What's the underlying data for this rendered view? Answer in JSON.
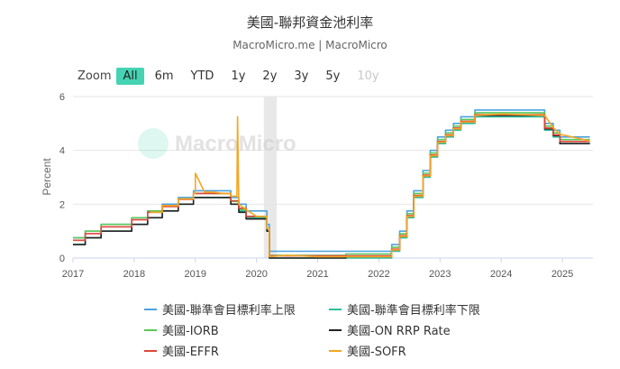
{
  "title": "美國-聯邦資金池利率",
  "subtitle": "MacroMicro.me | MacroMicro",
  "watermark": "MacroMicro",
  "zoom": {
    "label": "Zoom",
    "buttons": [
      {
        "label": "All",
        "state": "active"
      },
      {
        "label": "6m",
        "state": "normal"
      },
      {
        "label": "YTD",
        "state": "normal"
      },
      {
        "label": "1y",
        "state": "normal"
      },
      {
        "label": "2y",
        "state": "normal"
      },
      {
        "label": "3y",
        "state": "normal"
      },
      {
        "label": "5y",
        "state": "normal"
      },
      {
        "label": "10y",
        "state": "disabled"
      }
    ]
  },
  "chart_data": {
    "type": "line",
    "ylabel": "Percent",
    "xlabel": "",
    "xlim": [
      2017,
      2025.5
    ],
    "ylim": [
      0,
      6
    ],
    "yticks": [
      "0",
      "2",
      "4",
      "6"
    ],
    "xticks": [
      "2017",
      "2018",
      "2019",
      "2020",
      "2021",
      "2022",
      "2023",
      "2024",
      "2025"
    ],
    "grid": true,
    "shaded_band": [
      2020.12,
      2020.33
    ],
    "legend_position": "bottom",
    "series": [
      {
        "name": "美國-聯準會目標利率上限",
        "color": "#4aa3df",
        "x": [
          2017.0,
          2017.2,
          2017.2,
          2017.46,
          2017.46,
          2017.96,
          2017.96,
          2018.22,
          2018.22,
          2018.46,
          2018.46,
          2018.72,
          2018.72,
          2018.97,
          2018.97,
          2019.58,
          2019.58,
          2019.71,
          2019.71,
          2019.83,
          2019.83,
          2020.17,
          2020.17,
          2020.21,
          2020.21,
          2022.21,
          2022.21,
          2022.34,
          2022.34,
          2022.46,
          2022.46,
          2022.57,
          2022.57,
          2022.72,
          2022.72,
          2022.84,
          2022.84,
          2022.96,
          2022.96,
          2023.09,
          2023.09,
          2023.22,
          2023.22,
          2023.34,
          2023.34,
          2023.57,
          2023.57,
          2024.71,
          2024.71,
          2024.85,
          2024.85,
          2024.96,
          2024.96,
          2025.45
        ],
        "y": [
          0.75,
          0.75,
          1.0,
          1.0,
          1.25,
          1.25,
          1.5,
          1.5,
          1.75,
          1.75,
          2.0,
          2.0,
          2.25,
          2.25,
          2.5,
          2.5,
          2.25,
          2.25,
          2.0,
          2.0,
          1.75,
          1.75,
          1.25,
          1.25,
          0.25,
          0.25,
          0.5,
          0.5,
          1.0,
          1.0,
          1.75,
          1.75,
          2.5,
          2.5,
          3.25,
          3.25,
          4.0,
          4.0,
          4.5,
          4.5,
          4.75,
          4.75,
          5.0,
          5.0,
          5.25,
          5.25,
          5.5,
          5.5,
          5.0,
          5.0,
          4.75,
          4.75,
          4.5,
          4.5
        ]
      },
      {
        "name": "美國-聯準會目標利率下限",
        "color": "#2bbfa0",
        "x": [
          2017.0,
          2017.2,
          2017.2,
          2017.46,
          2017.46,
          2017.96,
          2017.96,
          2018.22,
          2018.22,
          2018.46,
          2018.46,
          2018.72,
          2018.72,
          2018.97,
          2018.97,
          2019.58,
          2019.58,
          2019.71,
          2019.71,
          2019.83,
          2019.83,
          2020.17,
          2020.17,
          2020.21,
          2020.21,
          2022.21,
          2022.21,
          2022.34,
          2022.34,
          2022.46,
          2022.46,
          2022.57,
          2022.57,
          2022.72,
          2022.72,
          2022.84,
          2022.84,
          2022.96,
          2022.96,
          2023.09,
          2023.09,
          2023.22,
          2023.22,
          2023.34,
          2023.34,
          2023.57,
          2023.57,
          2024.71,
          2024.71,
          2024.85,
          2024.85,
          2024.96,
          2024.96,
          2025.45
        ],
        "y": [
          0.5,
          0.5,
          0.75,
          0.75,
          1.0,
          1.0,
          1.25,
          1.25,
          1.5,
          1.5,
          1.75,
          1.75,
          2.0,
          2.0,
          2.25,
          2.25,
          2.0,
          2.0,
          1.75,
          1.75,
          1.5,
          1.5,
          1.0,
          1.0,
          0.0,
          0.0,
          0.25,
          0.25,
          0.75,
          0.75,
          1.5,
          1.5,
          2.25,
          2.25,
          3.0,
          3.0,
          3.75,
          3.75,
          4.25,
          4.25,
          4.5,
          4.5,
          4.75,
          4.75,
          5.0,
          5.0,
          5.25,
          5.25,
          4.75,
          4.75,
          4.5,
          4.5,
          4.25,
          4.25
        ]
      },
      {
        "name": "美國-IORB",
        "color": "#5ac85a",
        "x": [
          2017.0,
          2017.2,
          2017.2,
          2017.46,
          2017.46,
          2017.96,
          2017.96,
          2018.22,
          2018.22,
          2018.46,
          2018.46,
          2018.72,
          2018.72,
          2018.97,
          2018.97,
          2019.58,
          2019.58,
          2019.71,
          2019.71,
          2019.83,
          2019.83,
          2020.17,
          2020.17,
          2020.21,
          2020.21,
          2021.46,
          2021.46,
          2022.21,
          2022.21,
          2022.34,
          2022.34,
          2022.46,
          2022.46,
          2022.57,
          2022.57,
          2022.72,
          2022.72,
          2022.84,
          2022.84,
          2022.96,
          2022.96,
          2023.09,
          2023.09,
          2023.22,
          2023.22,
          2023.34,
          2023.34,
          2023.57,
          2023.57,
          2024.71,
          2024.71,
          2024.85,
          2024.85,
          2024.96,
          2024.96,
          2025.45
        ],
        "y": [
          0.75,
          0.75,
          1.0,
          1.0,
          1.25,
          1.25,
          1.5,
          1.5,
          1.75,
          1.75,
          1.95,
          1.95,
          2.2,
          2.2,
          2.4,
          2.4,
          2.1,
          2.1,
          1.8,
          1.8,
          1.55,
          1.55,
          1.1,
          1.1,
          0.1,
          0.1,
          0.15,
          0.15,
          0.4,
          0.4,
          0.9,
          0.9,
          1.65,
          1.65,
          2.4,
          2.4,
          3.15,
          3.15,
          3.9,
          3.9,
          4.4,
          4.4,
          4.65,
          4.65,
          4.9,
          4.9,
          5.15,
          5.15,
          5.4,
          5.4,
          4.9,
          4.9,
          4.65,
          4.65,
          4.4,
          4.4
        ]
      },
      {
        "name": "美國-ON RRP Rate",
        "color": "#222222",
        "x": [
          2017.0,
          2017.2,
          2017.2,
          2017.46,
          2017.46,
          2017.96,
          2017.96,
          2018.22,
          2018.22,
          2018.46,
          2018.46,
          2018.72,
          2018.72,
          2018.97,
          2018.97,
          2019.58,
          2019.58,
          2019.71,
          2019.71,
          2019.83,
          2019.83,
          2020.17,
          2020.17,
          2020.21,
          2020.21,
          2021.46,
          2021.46,
          2022.21,
          2022.21,
          2022.34,
          2022.34,
          2022.46,
          2022.46,
          2022.57,
          2022.57,
          2022.72,
          2022.72,
          2022.84,
          2022.84,
          2022.96,
          2022.96,
          2023.09,
          2023.09,
          2023.22,
          2023.22,
          2023.34,
          2023.34,
          2023.57,
          2023.57,
          2024.71,
          2024.71,
          2024.85,
          2024.85,
          2024.96,
          2024.96,
          2025.45
        ],
        "y": [
          0.5,
          0.5,
          0.75,
          0.75,
          1.0,
          1.0,
          1.25,
          1.25,
          1.5,
          1.5,
          1.75,
          1.75,
          2.0,
          2.0,
          2.25,
          2.25,
          2.0,
          2.0,
          1.7,
          1.7,
          1.45,
          1.45,
          1.0,
          1.0,
          0.0,
          0.0,
          0.05,
          0.05,
          0.3,
          0.3,
          0.8,
          0.8,
          1.55,
          1.55,
          2.3,
          2.3,
          3.05,
          3.05,
          3.8,
          3.8,
          4.3,
          4.3,
          4.55,
          4.55,
          4.8,
          4.8,
          5.05,
          5.05,
          5.3,
          5.3,
          4.8,
          4.8,
          4.55,
          4.55,
          4.25,
          4.25
        ]
      },
      {
        "name": "美國-EFFR",
        "color": "#e0453a",
        "x": [
          2017.0,
          2017.2,
          2017.2,
          2017.46,
          2017.46,
          2017.96,
          2017.96,
          2018.22,
          2018.22,
          2018.46,
          2018.46,
          2018.72,
          2018.72,
          2018.97,
          2018.97,
          2019.58,
          2019.58,
          2019.71,
          2019.71,
          2019.83,
          2019.83,
          2020.17,
          2020.17,
          2020.21,
          2020.21,
          2021.46,
          2021.46,
          2022.21,
          2022.21,
          2022.34,
          2022.34,
          2022.46,
          2022.46,
          2022.57,
          2022.57,
          2022.72,
          2022.72,
          2022.84,
          2022.84,
          2022.96,
          2022.96,
          2023.09,
          2023.09,
          2023.22,
          2023.22,
          2023.34,
          2023.34,
          2023.57,
          2023.57,
          2024.71,
          2024.71,
          2024.85,
          2024.85,
          2024.96,
          2024.96,
          2025.45
        ],
        "y": [
          0.66,
          0.66,
          0.91,
          0.91,
          1.16,
          1.16,
          1.42,
          1.42,
          1.7,
          1.7,
          1.91,
          1.91,
          2.18,
          2.18,
          2.4,
          2.4,
          2.13,
          2.13,
          1.85,
          1.85,
          1.55,
          1.55,
          1.1,
          1.1,
          0.08,
          0.08,
          0.08,
          0.08,
          0.33,
          0.33,
          0.83,
          0.83,
          1.58,
          1.58,
          2.33,
          2.33,
          3.08,
          3.08,
          3.83,
          3.83,
          4.33,
          4.33,
          4.58,
          4.58,
          4.83,
          4.83,
          5.08,
          5.08,
          5.33,
          5.33,
          4.83,
          4.83,
          4.58,
          4.58,
          4.33,
          4.33
        ]
      },
      {
        "name": "美國-SOFR",
        "color": "#f5a623",
        "x": [
          2018.26,
          2018.46,
          2018.46,
          2018.72,
          2018.72,
          2018.97,
          2018.97,
          2019.0,
          2019.0,
          2019.15,
          2019.3,
          2019.45,
          2019.58,
          2019.58,
          2019.68,
          2019.69,
          2019.71,
          2019.71,
          2019.83,
          2019.83,
          2020.0,
          2020.17,
          2020.17,
          2020.21,
          2020.21,
          2020.5,
          2021.0,
          2021.46,
          2021.46,
          2022.21,
          2022.21,
          2022.34,
          2022.34,
          2022.46,
          2022.46,
          2022.57,
          2022.57,
          2022.72,
          2022.72,
          2022.84,
          2022.84,
          2022.96,
          2022.96,
          2023.09,
          2023.09,
          2023.22,
          2023.22,
          2023.34,
          2023.34,
          2023.57,
          2023.57,
          2024.0,
          2024.71,
          2024.71,
          2024.85,
          2024.85,
          2024.96,
          2024.96,
          2025.45
        ],
        "y": [
          1.7,
          1.7,
          1.95,
          1.95,
          2.2,
          2.2,
          2.4,
          2.4,
          3.15,
          2.45,
          2.45,
          2.4,
          2.4,
          2.3,
          2.3,
          5.25,
          2.0,
          2.0,
          1.8,
          1.8,
          1.55,
          1.55,
          1.1,
          1.1,
          0.05,
          0.1,
          0.05,
          0.05,
          0.05,
          0.05,
          0.3,
          0.3,
          0.8,
          0.8,
          1.55,
          1.55,
          2.3,
          2.3,
          3.05,
          3.05,
          3.8,
          3.8,
          4.3,
          4.3,
          4.55,
          4.55,
          4.8,
          4.8,
          5.05,
          5.05,
          5.3,
          5.35,
          5.3,
          5.3,
          4.85,
          4.85,
          4.6,
          4.6,
          4.35
        ]
      }
    ]
  }
}
